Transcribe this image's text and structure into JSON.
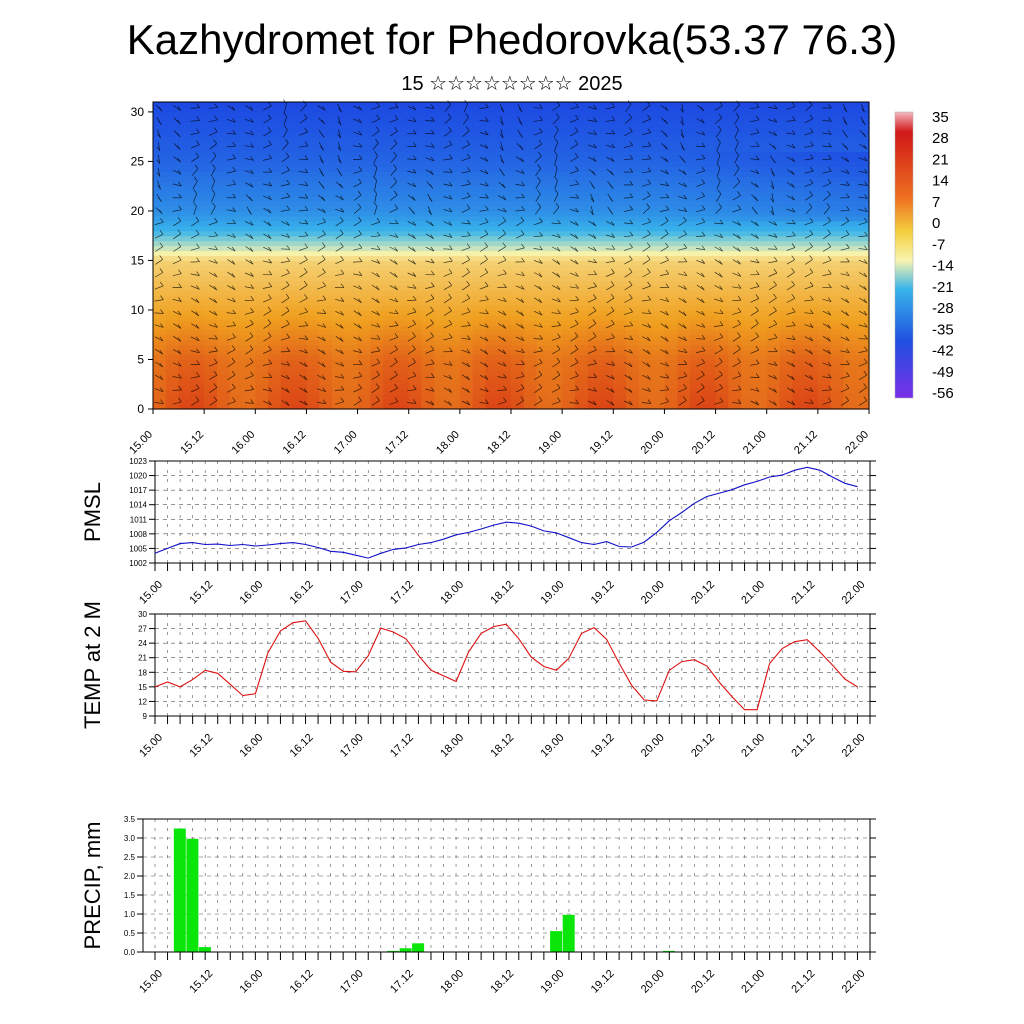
{
  "title": "Kazhydromet for Phedorovka(53.37 76.3)",
  "subtitle": "15 ☆☆☆☆☆☆☆☆ 2025",
  "x_tick_labels": [
    "15.00",
    "15.12",
    "16.00",
    "16.12",
    "17.00",
    "17.12",
    "18.00",
    "18.12",
    "19.00",
    "19.12",
    "20.00",
    "20.12",
    "21.00",
    "21.12",
    "22.00"
  ],
  "chart_data": [
    {
      "type": "heatmap",
      "x_ticks": [
        "15.00",
        "15.12",
        "16.00",
        "16.12",
        "17.00",
        "17.12",
        "18.00",
        "18.12",
        "19.00",
        "19.12",
        "20.00",
        "20.12",
        "21.00",
        "21.12",
        "22.00"
      ],
      "y_ticks": [
        0,
        5,
        10,
        15,
        20,
        25,
        30
      ],
      "ylim": [
        0,
        31
      ],
      "colorbar_labels": [
        "35",
        "28",
        "21",
        "14",
        "7",
        "0",
        "-7",
        "-14",
        "-21",
        "-28",
        "-35",
        "-42",
        "-49",
        "-56"
      ],
      "colorbar_range": [
        -63,
        42
      ],
      "colors": {
        "hot": "#d01010",
        "warm": "#f0a020",
        "neutral": "#f8f4b0",
        "cool": "#38b4ea",
        "cold": "#1630e0"
      },
      "temperature_profile": [
        {
          "level": 0,
          "value": 28
        },
        {
          "level": 5,
          "value": 24
        },
        {
          "level": 10,
          "value": 12
        },
        {
          "level": 15,
          "value": 0
        },
        {
          "level": 16,
          "value": -12
        },
        {
          "level": 18,
          "value": -25
        },
        {
          "level": 20,
          "value": -36
        },
        {
          "level": 25,
          "value": -48
        },
        {
          "level": 31,
          "value": -56
        }
      ],
      "wind_barbs": true
    },
    {
      "type": "line",
      "ylabel": "PMSL",
      "yticks": [
        1002,
        1005,
        1008,
        1011,
        1014,
        1017,
        1020,
        1023
      ],
      "ylim": [
        1002,
        1023
      ],
      "grid": true,
      "color": "#1010c8",
      "x": [
        0,
        3,
        6,
        9,
        12,
        15,
        18,
        21,
        24,
        27,
        30,
        33,
        36,
        39,
        42,
        45,
        48,
        51,
        54,
        57,
        60,
        63,
        66,
        69,
        72,
        75,
        78,
        81,
        84,
        87,
        90,
        93,
        96,
        99,
        102,
        105,
        108,
        111,
        114,
        117,
        120,
        123,
        126,
        129,
        132,
        135,
        138,
        141,
        144,
        147,
        150,
        153,
        156,
        159,
        162,
        165,
        168
      ],
      "y": [
        1004.0,
        1005.0,
        1006.0,
        1006.2,
        1005.8,
        1005.9,
        1005.6,
        1005.8,
        1005.5,
        1005.7,
        1006.0,
        1006.2,
        1005.8,
        1005.2,
        1004.4,
        1004.2,
        1003.6,
        1003.0,
        1004.0,
        1004.8,
        1005.1,
        1005.8,
        1006.2,
        1006.9,
        1007.8,
        1008.3,
        1009.0,
        1009.8,
        1010.4,
        1010.2,
        1009.6,
        1008.6,
        1008.2,
        1007.2,
        1006.2,
        1005.8,
        1006.4,
        1005.4,
        1005.3,
        1006.3,
        1008.3,
        1010.7,
        1012.4,
        1014.3,
        1015.7,
        1016.4,
        1017.1,
        1018.1,
        1018.8,
        1019.7,
        1020.1,
        1021.1,
        1021.7,
        1021.1,
        1019.7,
        1018.4,
        1017.7
      ]
    },
    {
      "type": "line",
      "ylabel": "TEMP at 2 M",
      "yticks": [
        9,
        12,
        15,
        18,
        21,
        24,
        27,
        30
      ],
      "ylim": [
        9,
        30
      ],
      "grid": true,
      "color": "#dd1010",
      "x": [
        0,
        3,
        6,
        9,
        12,
        15,
        18,
        21,
        24,
        27,
        30,
        33,
        36,
        39,
        42,
        45,
        48,
        51,
        54,
        57,
        60,
        63,
        66,
        69,
        72,
        75,
        78,
        81,
        84,
        87,
        90,
        93,
        96,
        99,
        102,
        105,
        108,
        111,
        114,
        117,
        120,
        123,
        126,
        129,
        132,
        135,
        138,
        141,
        144,
        147,
        150,
        153,
        156,
        159,
        162,
        165,
        168
      ],
      "y": [
        15.0,
        16.0,
        15.0,
        16.5,
        18.4,
        17.8,
        15.5,
        13.2,
        13.6,
        22.0,
        26.5,
        28.2,
        28.6,
        25.0,
        20.1,
        18.2,
        18.1,
        21.4,
        27.1,
        26.3,
        24.9,
        21.5,
        18.4,
        17.3,
        16.1,
        22.2,
        26.0,
        27.4,
        27.9,
        24.9,
        21.1,
        19.2,
        18.4,
        20.9,
        26.0,
        27.2,
        24.8,
        19.9,
        15.3,
        12.3,
        12.1,
        18.4,
        20.2,
        20.6,
        19.3,
        15.9,
        13.0,
        10.3,
        10.3,
        19.8,
        22.9,
        24.3,
        24.7,
        22.2,
        19.5,
        16.6,
        15.0
      ]
    },
    {
      "type": "bar",
      "ylabel": "PRECIP, mm",
      "yticks": [
        "0.0",
        "0.5",
        "1.0",
        "1.5",
        "2.0",
        "2.5",
        "3.0",
        "3.5"
      ],
      "ylim": [
        0,
        3.5
      ],
      "grid": true,
      "color": "#0ae60a",
      "bar_hours": [
        6,
        9,
        12,
        51,
        57,
        60,
        63,
        96,
        99,
        123
      ],
      "bar_values": [
        3.25,
        2.98,
        0.13,
        0.01,
        0.03,
        0.1,
        0.23,
        0.55,
        0.98,
        0.03
      ]
    }
  ]
}
